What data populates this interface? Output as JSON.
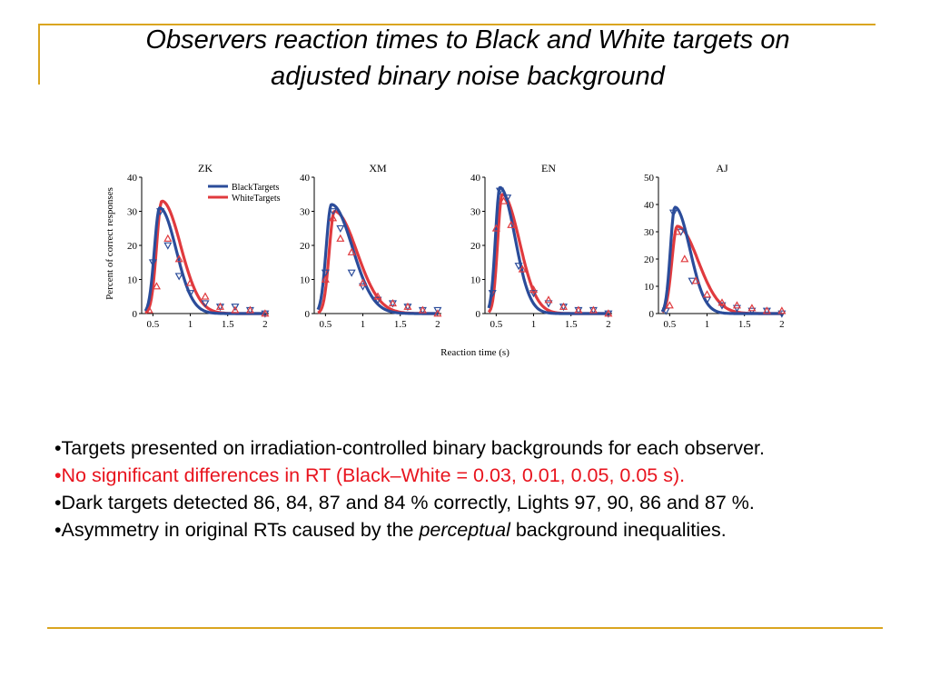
{
  "slide": {
    "title_line1": "Observers reaction times to Black and White targets on",
    "title_line2": "adjusted binary noise background"
  },
  "figure": {
    "ylabel": "Percent of correct responses",
    "xlabel": "Reaction time (s)",
    "legend": [
      "BlackTargets",
      "WhiteTargets"
    ],
    "colors": {
      "black_targets": "#2b4c9a",
      "white_targets": "#e03a3e",
      "accent": "#daa520"
    }
  },
  "chart_data": [
    {
      "type": "line",
      "title": "ZK",
      "ylim": [
        0,
        40
      ],
      "yticks": [
        "0",
        "10",
        "20",
        "30",
        "40"
      ],
      "xticks": [
        "0.5",
        "1",
        "1.5",
        "2"
      ],
      "legend": "top-right",
      "series": [
        {
          "name": "BlackTargets",
          "curve": {
            "peak_x": 0.59,
            "peak_y": 31,
            "rise": 0.07,
            "decay": 0.22
          },
          "markers": {
            "x": [
              0.5,
              0.6,
              0.7,
              0.85,
              1.0,
              1.2,
              1.4,
              1.6,
              1.8,
              2.0
            ],
            "y": [
              15,
              30,
              20,
              11,
              6,
              3,
              2,
              2,
              1,
              0
            ]
          }
        },
        {
          "name": "WhiteTargets",
          "curve": {
            "peak_x": 0.62,
            "peak_y": 33,
            "rise": 0.07,
            "decay": 0.25
          },
          "markers": {
            "x": [
              0.45,
              0.55,
              0.7,
              0.85,
              1.0,
              1.2,
              1.4,
              1.6,
              1.8,
              2.0
            ],
            "y": [
              1,
              8,
              22,
              16,
              9,
              5,
              2,
              1,
              1,
              0
            ]
          }
        }
      ]
    },
    {
      "type": "line",
      "title": "XM",
      "ylim": [
        0,
        40
      ],
      "yticks": [
        "0",
        "10",
        "20",
        "30",
        "40"
      ],
      "xticks": [
        "0.5",
        "1",
        "1.5",
        "2"
      ],
      "series": [
        {
          "name": "BlackTargets",
          "curve": {
            "peak_x": 0.58,
            "peak_y": 32,
            "rise": 0.07,
            "decay": 0.28
          },
          "markers": {
            "x": [
              0.5,
              0.6,
              0.7,
              0.85,
              1.0,
              1.2,
              1.4,
              1.6,
              1.8,
              2.0
            ],
            "y": [
              12,
              30,
              25,
              12,
              8,
              4,
              3,
              2,
              1,
              1
            ]
          }
        },
        {
          "name": "WhiteTargets",
          "curve": {
            "peak_x": 0.62,
            "peak_y": 30,
            "rise": 0.07,
            "decay": 0.3
          },
          "markers": {
            "x": [
              0.5,
              0.6,
              0.7,
              0.85,
              1.0,
              1.2,
              1.4,
              1.6,
              1.8,
              2.0
            ],
            "y": [
              10,
              28,
              22,
              18,
              9,
              5,
              3,
              2,
              1,
              0
            ]
          }
        }
      ]
    },
    {
      "type": "line",
      "title": "EN",
      "ylim": [
        0,
        40
      ],
      "yticks": [
        "0",
        "10",
        "20",
        "30",
        "40"
      ],
      "xticks": [
        "0.5",
        "1",
        "1.5",
        "2"
      ],
      "series": [
        {
          "name": "BlackTargets",
          "curve": {
            "peak_x": 0.55,
            "peak_y": 37,
            "rise": 0.06,
            "decay": 0.2
          },
          "markers": {
            "x": [
              0.45,
              0.55,
              0.65,
              0.8,
              1.0,
              1.2,
              1.4,
              1.6,
              1.8,
              2.0
            ],
            "y": [
              6,
              36,
              34,
              14,
              6,
              3,
              2,
              1,
              1,
              0
            ]
          }
        },
        {
          "name": "WhiteTargets",
          "curve": {
            "peak_x": 0.58,
            "peak_y": 35,
            "rise": 0.06,
            "decay": 0.23
          },
          "markers": {
            "x": [
              0.5,
              0.6,
              0.7,
              0.85,
              1.0,
              1.2,
              1.4,
              1.6,
              1.8,
              2.0
            ],
            "y": [
              25,
              33,
              26,
              13,
              7,
              4,
              2,
              1,
              1,
              0
            ]
          }
        }
      ]
    },
    {
      "type": "line",
      "title": "AJ",
      "ylim": [
        0,
        50
      ],
      "yticks": [
        "0",
        "10",
        "20",
        "30",
        "40",
        "50"
      ],
      "xticks": [
        "0.5",
        "1",
        "1.5",
        "2"
      ],
      "series": [
        {
          "name": "BlackTargets",
          "curve": {
            "peak_x": 0.57,
            "peak_y": 39,
            "rise": 0.06,
            "decay": 0.2
          },
          "markers": {
            "x": [
              0.45,
              0.55,
              0.65,
              0.8,
              1.0,
              1.2,
              1.4,
              1.6,
              1.8,
              2.0
            ],
            "y": [
              1,
              37,
              30,
              12,
              5,
              3,
              2,
              1,
              1,
              0
            ]
          }
        },
        {
          "name": "WhiteTargets",
          "curve": {
            "peak_x": 0.6,
            "peak_y": 32,
            "rise": 0.07,
            "decay": 0.28
          },
          "markers": {
            "x": [
              0.5,
              0.6,
              0.7,
              0.85,
              1.0,
              1.2,
              1.4,
              1.6,
              1.8,
              2.0
            ],
            "y": [
              3,
              30,
              20,
              12,
              7,
              4,
              3,
              2,
              1,
              1
            ]
          }
        }
      ]
    }
  ],
  "bullets": [
    {
      "text": "•Targets presented on irradiation-controlled binary backgrounds for each observer.",
      "highlight": false
    },
    {
      "text": "•No significant differences in RT (Black–White = 0.03, 0.01, 0.05, 0.05 s).",
      "highlight": true
    },
    {
      "text": "•Dark targets detected 86, 84, 87 and 84 % correctly, Lights 97, 90, 86 and 87 %.",
      "highlight": false
    }
  ],
  "last_bullet": {
    "before": "•Asymmetry in original RTs caused by the ",
    "emph": "perceptual",
    "after": " background inequalities."
  }
}
